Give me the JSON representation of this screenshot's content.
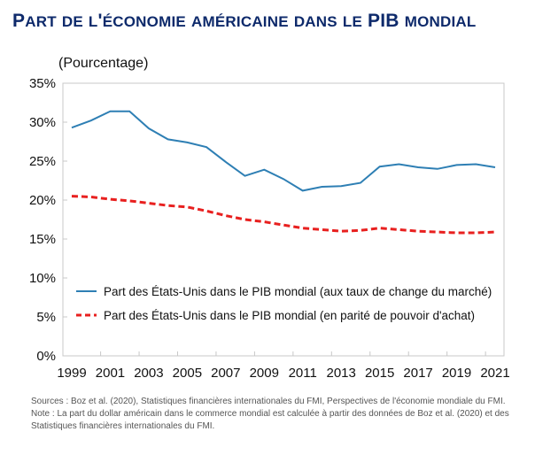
{
  "title": "Part de l'économie américaine dans le PIB mondial",
  "chart_data": {
    "type": "line",
    "title": "Part de l'économie américaine dans le PIB mondial",
    "ylabel": "(Pourcentage)",
    "xlabel": "",
    "x": [
      1999,
      2000,
      2001,
      2002,
      2003,
      2004,
      2005,
      2006,
      2007,
      2008,
      2009,
      2010,
      2011,
      2012,
      2013,
      2014,
      2015,
      2016,
      2017,
      2018,
      2019,
      2020,
      2021
    ],
    "x_tick_labels": [
      "1999",
      "2001",
      "2003",
      "2005",
      "2007",
      "2009",
      "2011",
      "2013",
      "2015",
      "2017",
      "2019",
      "2021"
    ],
    "y_tick_labels": [
      "0%",
      "5%",
      "10%",
      "15%",
      "20%",
      "25%",
      "30%",
      "35%"
    ],
    "ylim": [
      0,
      35
    ],
    "grid": false,
    "legend_position": "bottom-left inside",
    "series": [
      {
        "name": "Part des États-Unis dans le PIB mondial (aux taux de change du marché)",
        "color": "#2e7fb4",
        "style": "solid",
        "values": [
          29.3,
          30.2,
          31.4,
          31.4,
          29.2,
          27.8,
          27.4,
          26.8,
          24.9,
          23.1,
          23.9,
          22.7,
          21.2,
          21.7,
          21.8,
          22.2,
          24.3,
          24.6,
          24.2,
          24.0,
          24.5,
          24.6,
          24.2
        ]
      },
      {
        "name": "Part des États-Unis dans le PIB mondial (en parité de pouvoir d'achat)",
        "color": "#e8201f",
        "style": "dashed",
        "values": [
          20.5,
          20.4,
          20.1,
          19.9,
          19.6,
          19.3,
          19.1,
          18.6,
          18.0,
          17.5,
          17.2,
          16.8,
          16.4,
          16.2,
          16.0,
          16.1,
          16.4,
          16.2,
          16.0,
          15.9,
          15.8,
          15.8,
          15.9
        ]
      }
    ]
  },
  "notes": {
    "sources": "Sources : Boz et al. (2020), Statistiques financières internationales du FMI, Perspectives de l'économie mondiale du FMI.",
    "note": "Note : La part du dollar américain dans le commerce mondial est calculée à partir des données de Boz et al. (2020) et des Statistiques financières internationales du FMI."
  }
}
